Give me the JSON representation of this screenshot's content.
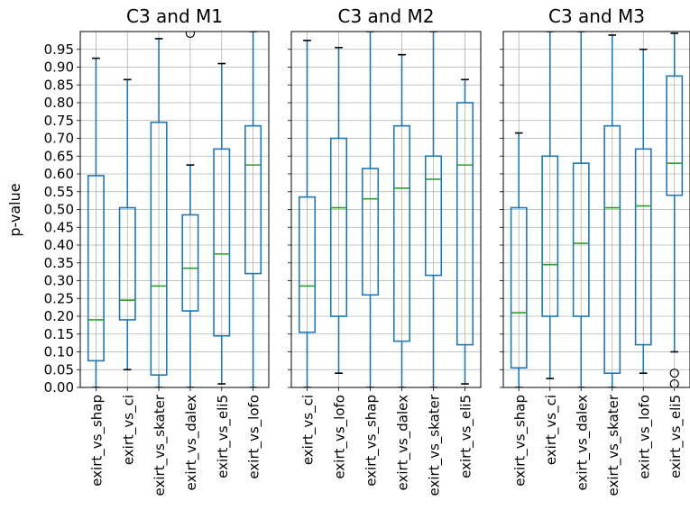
{
  "figure": {
    "ylabel": "p-value",
    "y_ticks": [
      0.0,
      0.05,
      0.1,
      0.15,
      0.2,
      0.25,
      0.3,
      0.35,
      0.4,
      0.45,
      0.5,
      0.55,
      0.6,
      0.65,
      0.7,
      0.75,
      0.8,
      0.85,
      0.9,
      0.95
    ]
  },
  "colors": {
    "box": "#1f77b4",
    "median": "#2ca02c",
    "grid": "#b0b0b0",
    "flier": "#000000"
  },
  "chart_data": [
    {
      "type": "boxplot",
      "title": "C3 and M1",
      "ylabel": "p-value",
      "ylim": [
        0,
        1
      ],
      "grid": true,
      "categories": [
        "exirt_vs_shap",
        "exirt_vs_ci",
        "exirt_vs_skater",
        "exirt_vs_dalex",
        "exirt_vs_eli5",
        "exirt_vs_lofo"
      ],
      "boxes": [
        {
          "whisker_low": 0.0,
          "q1": 0.075,
          "median": 0.19,
          "q3": 0.595,
          "whisker_high": 0.925,
          "outliers": []
        },
        {
          "whisker_low": 0.05,
          "q1": 0.19,
          "median": 0.245,
          "q3": 0.505,
          "whisker_high": 0.865,
          "outliers": []
        },
        {
          "whisker_low": 0.0,
          "q1": 0.035,
          "median": 0.285,
          "q3": 0.745,
          "whisker_high": 0.98,
          "outliers": []
        },
        {
          "whisker_low": 0.0,
          "q1": 0.215,
          "median": 0.335,
          "q3": 0.485,
          "whisker_high": 0.625,
          "outliers": [
            0.995
          ]
        },
        {
          "whisker_low": 0.01,
          "q1": 0.145,
          "median": 0.375,
          "q3": 0.67,
          "whisker_high": 0.91,
          "outliers": []
        },
        {
          "whisker_low": 0.0,
          "q1": 0.32,
          "median": 0.625,
          "q3": 0.735,
          "whisker_high": 1.0,
          "outliers": []
        }
      ]
    },
    {
      "type": "boxplot",
      "title": "C3 and M2",
      "ylim": [
        0,
        1
      ],
      "grid": true,
      "categories": [
        "exirt_vs_ci",
        "exirt_vs_lofo",
        "exirt_vs_shap",
        "exirt_vs_dalex",
        "exirt_vs_skater",
        "exirt_vs_eli5"
      ],
      "boxes": [
        {
          "whisker_low": 0.0,
          "q1": 0.155,
          "median": 0.285,
          "q3": 0.535,
          "whisker_high": 0.975,
          "outliers": []
        },
        {
          "whisker_low": 0.04,
          "q1": 0.2,
          "median": 0.505,
          "q3": 0.7,
          "whisker_high": 0.955,
          "outliers": []
        },
        {
          "whisker_low": 0.0,
          "q1": 0.26,
          "median": 0.53,
          "q3": 0.615,
          "whisker_high": 1.0,
          "outliers": []
        },
        {
          "whisker_low": 0.0,
          "q1": 0.13,
          "median": 0.56,
          "q3": 0.735,
          "whisker_high": 0.935,
          "outliers": []
        },
        {
          "whisker_low": 0.0,
          "q1": 0.315,
          "median": 0.585,
          "q3": 0.65,
          "whisker_high": 1.0,
          "outliers": []
        },
        {
          "whisker_low": 0.01,
          "q1": 0.12,
          "median": 0.625,
          "q3": 0.8,
          "whisker_high": 0.865,
          "outliers": []
        }
      ]
    },
    {
      "type": "boxplot",
      "title": "C3 and M3",
      "ylim": [
        0,
        1
      ],
      "grid": true,
      "categories": [
        "exirt_vs_shap",
        "exirt_vs_ci",
        "exirt_vs_dalex",
        "exirt_vs_skater",
        "exirt_vs_lofo",
        "exirt_vs_eli5"
      ],
      "boxes": [
        {
          "whisker_low": 0.0,
          "q1": 0.055,
          "median": 0.21,
          "q3": 0.505,
          "whisker_high": 0.715,
          "outliers": []
        },
        {
          "whisker_low": 0.025,
          "q1": 0.2,
          "median": 0.345,
          "q3": 0.65,
          "whisker_high": 1.0,
          "outliers": []
        },
        {
          "whisker_low": 0.0,
          "q1": 0.2,
          "median": 0.405,
          "q3": 0.63,
          "whisker_high": 1.0,
          "outliers": []
        },
        {
          "whisker_low": 0.0,
          "q1": 0.04,
          "median": 0.505,
          "q3": 0.735,
          "whisker_high": 0.99,
          "outliers": []
        },
        {
          "whisker_low": 0.04,
          "q1": 0.12,
          "median": 0.51,
          "q3": 0.67,
          "whisker_high": 0.95,
          "outliers": []
        },
        {
          "whisker_low": 0.1,
          "q1": 0.54,
          "median": 0.63,
          "q3": 0.875,
          "whisker_high": 0.995,
          "outliers": [
            0.04,
            0.01
          ]
        }
      ]
    }
  ]
}
